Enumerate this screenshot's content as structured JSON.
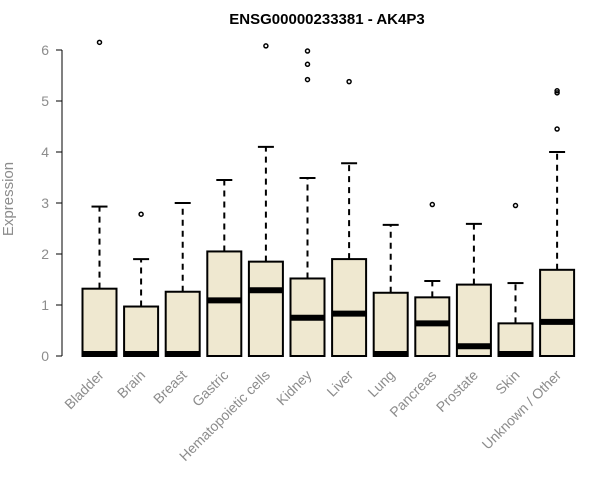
{
  "chart_data": {
    "type": "boxplot",
    "title": "ENSG00000233381 - AK4P3",
    "xlabel": "",
    "ylabel": "Expression",
    "ylim": [
      0,
      6.25
    ],
    "yticks": [
      0,
      1,
      2,
      3,
      4,
      5,
      6
    ],
    "grid": false,
    "legend": "none",
    "colors": {
      "box_fill": "#efe8d0",
      "stroke": "#000000",
      "text": "#8c8c8c"
    },
    "categories": [
      "Bladder",
      "Brain",
      "Breast",
      "Gastric",
      "Hematopoietic cells",
      "Kidney",
      "Liver",
      "Lung",
      "Pancreas",
      "Prostate",
      "Skin",
      "Unknown / Other"
    ],
    "boxes": [
      {
        "q1": 0,
        "median": 0,
        "q3": 1.32,
        "whisker_low": 0,
        "whisker_high": 2.93,
        "outliers": [
          6.15
        ]
      },
      {
        "q1": 0,
        "median": 0,
        "q3": 0.97,
        "whisker_low": 0,
        "whisker_high": 1.9,
        "outliers": [
          2.78
        ]
      },
      {
        "q1": 0,
        "median": 0,
        "q3": 1.26,
        "whisker_low": 0,
        "whisker_high": 3.0,
        "outliers": []
      },
      {
        "q1": 0,
        "median": 1.09,
        "q3": 2.05,
        "whisker_low": 0,
        "whisker_high": 3.45,
        "outliers": []
      },
      {
        "q1": 0,
        "median": 1.29,
        "q3": 1.85,
        "whisker_low": 0,
        "whisker_high": 4.1,
        "outliers": [
          6.08
        ]
      },
      {
        "q1": 0,
        "median": 0.75,
        "q3": 1.52,
        "whisker_low": 0,
        "whisker_high": 3.49,
        "outliers": [
          5.42,
          5.72,
          5.98
        ]
      },
      {
        "q1": 0,
        "median": 0.83,
        "q3": 1.9,
        "whisker_low": 0,
        "whisker_high": 3.78,
        "outliers": [
          5.38
        ]
      },
      {
        "q1": 0,
        "median": 0,
        "q3": 1.24,
        "whisker_low": 0,
        "whisker_high": 2.57,
        "outliers": []
      },
      {
        "q1": 0,
        "median": 0.64,
        "q3": 1.15,
        "whisker_low": 0,
        "whisker_high": 1.47,
        "outliers": [
          2.97
        ]
      },
      {
        "q1": 0,
        "median": 0.19,
        "q3": 1.4,
        "whisker_low": 0,
        "whisker_high": 2.59,
        "outliers": []
      },
      {
        "q1": 0,
        "median": 0,
        "q3": 0.64,
        "whisker_low": 0,
        "whisker_high": 1.43,
        "outliers": [
          2.95
        ]
      },
      {
        "q1": 0,
        "median": 0.67,
        "q3": 1.69,
        "whisker_low": 0,
        "whisker_high": 4.0,
        "outliers": [
          4.45,
          5.16,
          5.2
        ]
      }
    ]
  }
}
